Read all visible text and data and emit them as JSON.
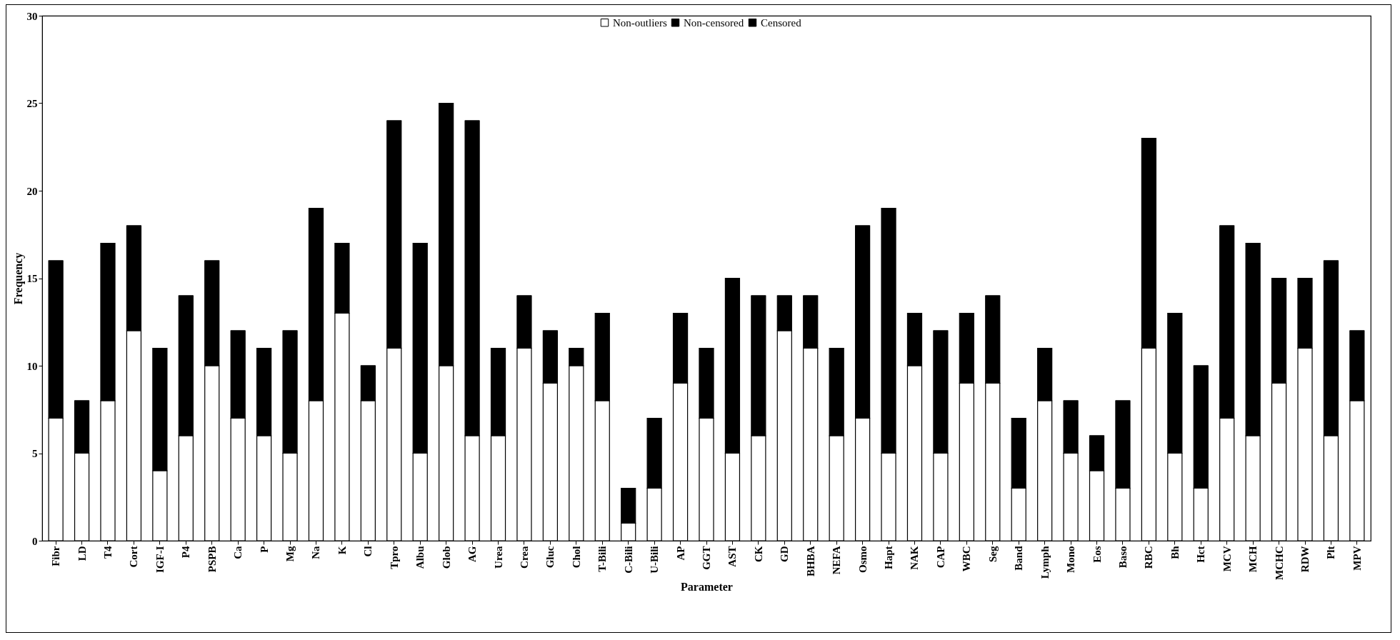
{
  "chart_data": {
    "type": "bar",
    "stacked": true,
    "xlabel": "Parameter",
    "ylabel": "Frequency",
    "legend": "top",
    "grid": false,
    "categories": [
      "Fibr",
      "LD",
      "T4",
      "Cort",
      "IGF-I",
      "P4",
      "PSPB",
      "Ca",
      "P",
      "Mg",
      "Na",
      "K",
      "Cl",
      "Tpro",
      "Albu",
      "Glob",
      "AG",
      "Urea",
      "Crea",
      "Gluc",
      "Chol",
      "T-Bili",
      "C-Bili",
      "U-Bili",
      "AP",
      "GGT",
      "AST",
      "CK",
      "GD",
      "BHBA",
      "NEFA",
      "Osmo",
      "Hapt",
      "NAK",
      "CAP",
      "WBC",
      "Seg",
      "Band",
      "Lymph",
      "Mono",
      "Eos",
      "Baso",
      "RBC",
      "Bh",
      "Hct",
      "MCV",
      "MCH",
      "MCHC",
      "RDW",
      "Plt",
      "MPV"
    ],
    "ylim": [
      0,
      30
    ],
    "yticks": [
      0,
      5,
      10,
      15,
      20,
      25,
      30
    ],
    "series": [
      {
        "name": "Non-outliers",
        "color": "#ffffff",
        "values": [
          7,
          5,
          8,
          12,
          4,
          6,
          10,
          7,
          6,
          5,
          8,
          13,
          8,
          11,
          5,
          10,
          6,
          6,
          11,
          9,
          10,
          8,
          1,
          3,
          9,
          7,
          5,
          6,
          12,
          11,
          6,
          7,
          5,
          10,
          5,
          9,
          9,
          3,
          8,
          5,
          4,
          3,
          11,
          5,
          3,
          7,
          6,
          9,
          11,
          6,
          8
        ]
      },
      {
        "name": "Non-censored",
        "color": "#000000",
        "values": [
          9,
          3,
          9,
          6,
          7,
          8,
          6,
          5,
          5,
          7,
          11,
          4,
          2,
          13,
          12,
          15,
          18,
          5,
          3,
          3,
          1,
          5,
          2,
          4,
          4,
          4,
          10,
          8,
          2,
          3,
          5,
          11,
          14,
          3,
          7,
          4,
          5,
          4,
          3,
          3,
          2,
          5,
          12,
          8,
          7,
          11,
          11,
          6,
          4,
          10,
          4
        ]
      },
      {
        "name": "Censored",
        "color": "#000000",
        "values": [
          0,
          0,
          0,
          0,
          0,
          0,
          0,
          0,
          0,
          0,
          0,
          0,
          0,
          0,
          0,
          0,
          0,
          0,
          0,
          0,
          0,
          0,
          0,
          0,
          0,
          0,
          0,
          0,
          0,
          0,
          0,
          0,
          0,
          0,
          0,
          0,
          0,
          0,
          0,
          0,
          0,
          0,
          0,
          0,
          0,
          0,
          0,
          0,
          0,
          0,
          0
        ]
      }
    ]
  }
}
